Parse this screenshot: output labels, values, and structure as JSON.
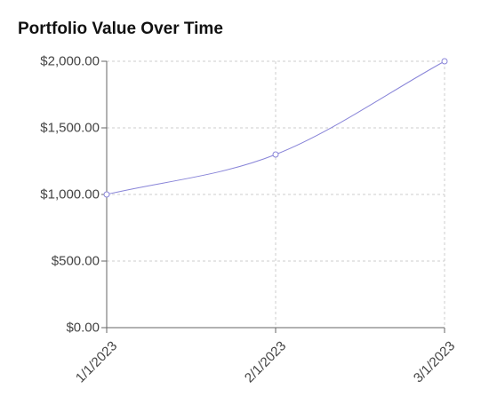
{
  "chart_data": {
    "type": "line",
    "title": "Portfolio Value Over Time",
    "xlabel": "",
    "ylabel": "",
    "categories": [
      "1/1/2023",
      "2/1/2023",
      "3/1/2023"
    ],
    "series": [
      {
        "values": [
          1000,
          1300,
          2000
        ],
        "color": "#8884d8"
      }
    ],
    "ylim": [
      0,
      2000
    ],
    "yticks": [
      0,
      500,
      1000,
      1500,
      2000
    ],
    "ytick_labels": [
      "$0.00",
      "$500.00",
      "$1,000.00",
      "$1,500.00",
      "$2,000.00"
    ],
    "grid": true,
    "legend": "none"
  }
}
